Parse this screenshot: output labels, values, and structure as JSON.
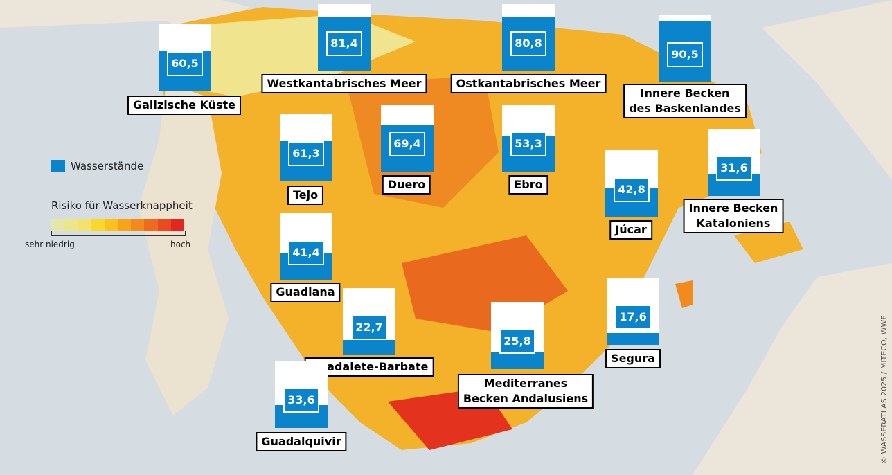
{
  "chart_data": {
    "type": "gauge-map",
    "categories": [
      "Galizische Küste",
      "Westkantabrisches Meer",
      "Ostkantabrisches Meer",
      "Innere Becken\ndes Baskenlandes",
      "Tejo",
      "Duero",
      "Ebro",
      "Júcar",
      "Innere Becken\nKataloniens",
      "Guadiana",
      "Guadalete-Barbate",
      "Mediterranes\nBecken Andalusiens",
      "Segura",
      "Guadalquivir"
    ],
    "values": [
      60.5,
      81.4,
      80.8,
      90.5,
      61.3,
      69.4,
      53.3,
      42.8,
      31.6,
      41.4,
      22.7,
      25.8,
      17.6,
      33.6
    ],
    "value_labels": [
      "60,5",
      "81,4",
      "80,8",
      "90,5",
      "61,3",
      "69,4",
      "53,3",
      "42,8",
      "31,6",
      "41,4",
      "22,7",
      "25,8",
      "17,6",
      "33,6"
    ],
    "ylim": [
      0,
      100
    ],
    "color": "#0a85cc",
    "series_name": "Wasserstände",
    "scale_title": "Risiko für Wasserknappheit",
    "scale_low": "sehr niedrig",
    "scale_high": "hoch",
    "scale_colors": [
      "#e3e8a8",
      "#ebe58c",
      "#f3e36c",
      "#fbd92a",
      "#fbc21c",
      "#f7a418",
      "#f38a1c",
      "#ee6a1e",
      "#e94a20",
      "#e3261f"
    ],
    "source": "© WASSERATLAS 2025 / MITECO, WWF"
  }
}
